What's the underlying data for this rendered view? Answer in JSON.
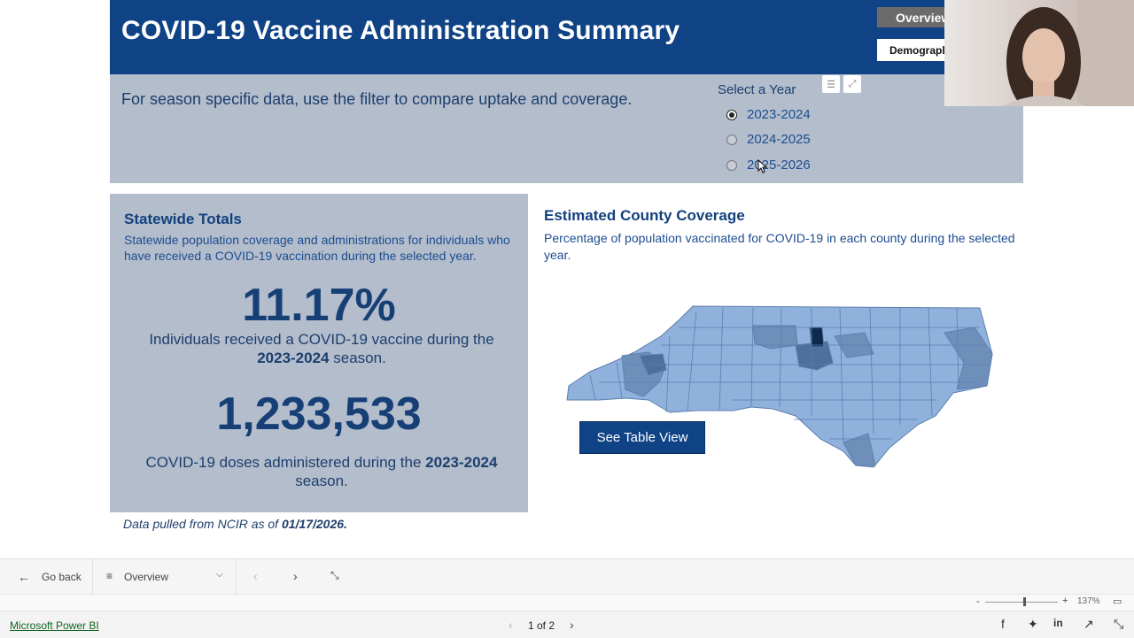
{
  "header": {
    "title": "COVID-19 Vaccine Administration Summary",
    "overview_button": "Overview",
    "demographics_button": "Demographics"
  },
  "filter": {
    "description": "For season specific data, use the filter to compare uptake and coverage.",
    "year_title": "Select a Year",
    "options": [
      {
        "label": "2023-2024",
        "selected": true
      },
      {
        "label": "2024-2025",
        "selected": false
      },
      {
        "label": "2025-2026",
        "selected": false
      }
    ]
  },
  "totals": {
    "title": "Statewide Totals",
    "description": "Statewide population coverage and administrations for individuals who have received a COVID-19 vaccination during the selected year.",
    "coverage_value": "11.17%",
    "coverage_caption_pre": "Individuals received a COVID-19 vaccine during the",
    "coverage_caption_season": "2023-2024",
    "coverage_caption_post": "season.",
    "doses_value": "1,233,533",
    "doses_caption_pre": "COVID-19 doses administered during the",
    "doses_caption_season": "2023-2024",
    "doses_caption_post": "season."
  },
  "data_note": {
    "prefix": "Data pulled from NCIR as of",
    "date": "01/17/2026."
  },
  "coverage": {
    "title": "Estimated County Coverage",
    "description": "Percentage of population vaccinated for COVID-19 in each county during the selected year.",
    "table_button": "See Table View",
    "colors": {
      "light": "#8fb1dc",
      "mid": "#6f8fbb",
      "dark": "#4f6f9c",
      "darkest": "#0d2a4e"
    }
  },
  "navbar": {
    "back_label": "Go back",
    "page_select": "Overview"
  },
  "zoom": {
    "level": "137%",
    "minus": "-",
    "plus": "+"
  },
  "footer": {
    "brand_link": "Microsoft Power BI",
    "pager": "1 of 2"
  },
  "colors": {
    "header_bg": "#0f4386",
    "panel_bg": "#b3bdcc",
    "accent_text": "#1d4d91"
  }
}
